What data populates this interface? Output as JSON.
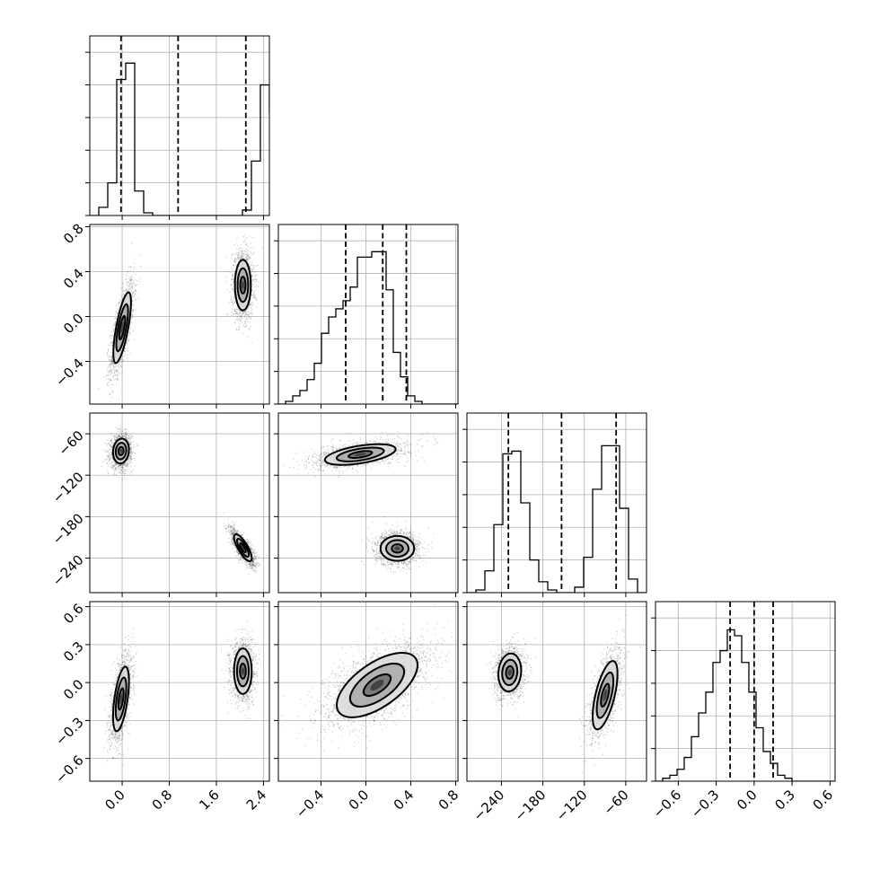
{
  "chart_data": {
    "type": "corner",
    "grid": true,
    "parameters": [
      {
        "range": [
          -0.55,
          2.5
        ],
        "ticks": [
          0.0,
          0.8,
          1.6,
          2.4
        ],
        "tick_labels": [
          "0.0",
          "0.8",
          "1.6",
          "2.4"
        ],
        "quantiles": [
          -0.02,
          0.95,
          2.1
        ]
      },
      {
        "range": [
          -0.78,
          0.82
        ],
        "ticks": [
          -0.4,
          0.0,
          0.4,
          0.8
        ],
        "tick_labels": [
          "−0.4",
          "0.0",
          "0.4",
          "0.8"
        ],
        "quantiles": [
          -0.18,
          0.15,
          0.36
        ]
      },
      {
        "range": [
          -290,
          -30
        ],
        "ticks": [
          -240,
          -180,
          -120,
          -60
        ],
        "tick_labels": [
          "−240",
          "−180",
          "−120",
          "−60"
        ],
        "quantiles": [
          -230,
          -153,
          -74
        ]
      },
      {
        "range": [
          -0.78,
          0.64
        ],
        "ticks": [
          -0.6,
          -0.3,
          0.0,
          0.3,
          0.6
        ],
        "tick_labels": [
          "−0.6",
          "−0.3",
          "0.0",
          "0.3",
          "0.6"
        ],
        "quantiles": [
          -0.19,
          0.0,
          0.15
        ]
      }
    ],
    "histograms": [
      {
        "param": 0,
        "edges_start": -0.55,
        "bin_width": 0.1525,
        "counts": [
          0,
          3,
          12,
          50,
          56,
          9,
          1,
          0,
          0,
          0,
          0,
          0,
          0,
          0,
          0,
          0,
          0,
          2,
          20,
          48,
          38,
          5,
          0
        ],
        "ymax": 60
      },
      {
        "param": 1,
        "edges_start": -0.78,
        "bin_width": 0.064,
        "counts": [
          0,
          1,
          3,
          5,
          9,
          15,
          26,
          32,
          35,
          38,
          43,
          54,
          54,
          56,
          56,
          42,
          19,
          10,
          3,
          1,
          0,
          0,
          0,
          0,
          0
        ],
        "ymax": 60
      },
      {
        "param": 2,
        "edges_start": -290,
        "bin_width": 13,
        "counts": [
          0,
          1,
          8,
          25,
          51,
          52,
          33,
          12,
          4,
          1,
          0,
          0,
          2,
          13,
          38,
          54,
          54,
          31,
          5,
          0
        ],
        "ymax": 60
      },
      {
        "param": 3,
        "edges_start": -0.78,
        "bin_width": 0.0568,
        "counts": [
          0,
          1,
          2,
          4,
          8,
          15,
          23,
          30,
          40,
          44,
          51,
          49,
          40,
          30,
          18,
          10,
          6,
          2,
          1,
          0,
          0,
          0,
          0,
          0,
          0
        ],
        "ymax": 55
      }
    ],
    "pairs": [
      {
        "x": 0,
        "y": 1,
        "blobs": [
          {
            "cx": 0.0,
            "cy": -0.1,
            "sx": 0.1,
            "sy": 0.21,
            "rho": 0.72,
            "n": 1500
          },
          {
            "cx": 2.05,
            "cy": 0.28,
            "sx": 0.09,
            "sy": 0.15,
            "rho": 0.0,
            "n": 1500
          }
        ]
      },
      {
        "x": 0,
        "y": 2,
        "blobs": [
          {
            "cx": -0.02,
            "cy": -85,
            "sx": 0.09,
            "sy": 12,
            "rho": 0.1,
            "n": 1500
          },
          {
            "cx": 2.05,
            "cy": -225,
            "sx": 0.1,
            "sy": 13,
            "rho": -0.78,
            "n": 1500
          }
        ]
      },
      {
        "x": 1,
        "y": 2,
        "blobs": [
          {
            "cx": -0.05,
            "cy": -90,
            "sx": 0.21,
            "sy": 10,
            "rho": 0.52,
            "n": 1500
          },
          {
            "cx": 0.28,
            "cy": -226,
            "sx": 0.1,
            "sy": 12,
            "rho": 0.0,
            "n": 1500
          }
        ]
      },
      {
        "x": 0,
        "y": 3,
        "blobs": [
          {
            "cx": -0.02,
            "cy": -0.13,
            "sx": 0.09,
            "sy": 0.17,
            "rho": 0.55,
            "n": 1500
          },
          {
            "cx": 2.05,
            "cy": 0.09,
            "sx": 0.1,
            "sy": 0.12,
            "rho": 0.0,
            "n": 1500
          }
        ]
      },
      {
        "x": 1,
        "y": 3,
        "blobs": [
          {
            "cx": 0.1,
            "cy": -0.02,
            "sx": 0.24,
            "sy": 0.17,
            "rho": 0.62,
            "n": 2400
          }
        ]
      },
      {
        "x": 2,
        "y": 3,
        "blobs": [
          {
            "cx": -228,
            "cy": 0.08,
            "sx": 11,
            "sy": 0.1,
            "rho": 0.1,
            "n": 1500
          },
          {
            "cx": -90,
            "cy": -0.1,
            "sx": 12,
            "sy": 0.18,
            "rho": 0.62,
            "n": 1500
          }
        ]
      }
    ],
    "contour_levels_sigma": [
      0.5,
      1.0,
      1.5
    ]
  }
}
